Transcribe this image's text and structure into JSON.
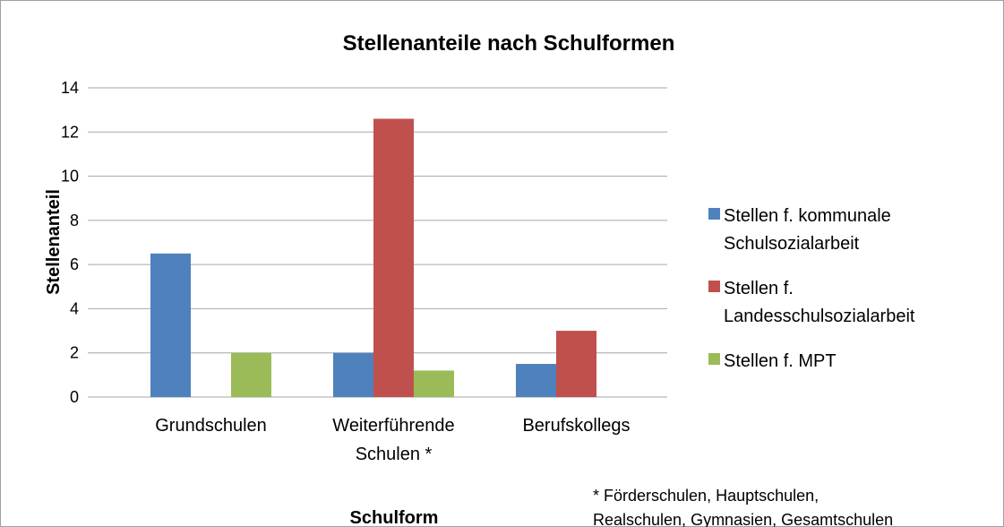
{
  "chart_data": {
    "type": "bar",
    "title": "Stellenanteile nach Schulformen",
    "categories": [
      "Grundschulen",
      "Weiterführende\nSchulen *",
      "Berufskollegs"
    ],
    "series": [
      {
        "name": "Stellen f. kommunale\nSchulsozialarbeit",
        "color": "#4f81bd",
        "values": [
          6.5,
          2,
          1.5
        ]
      },
      {
        "name": "Stellen f.\nLandesschulsozialarbeit",
        "color": "#c0504d",
        "values": [
          0,
          12.6,
          3
        ]
      },
      {
        "name": "Stellen f. MPT",
        "color": "#9bbb59",
        "values": [
          2,
          1.2,
          0
        ]
      }
    ],
    "ylim": [
      0,
      14
    ],
    "yticks": [
      0,
      2,
      4,
      6,
      8,
      10,
      12,
      14
    ],
    "grid": true,
    "xlabel": "Schulform",
    "ylabel": "Stellenanteil",
    "legend": "right",
    "annotation": "* Förderschulen, Hauptschulen,\nRealschulen, Gymnasien, Gesamtschulen"
  }
}
